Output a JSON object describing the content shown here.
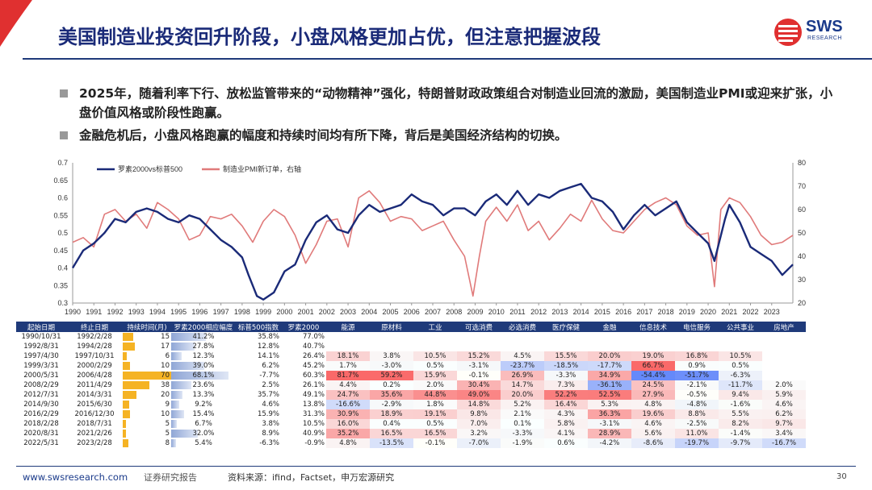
{
  "header": {
    "title": "美国制造业投资回升阶段，小盘风格更加占优，但注意把握波段",
    "logo_text": "SWS",
    "logo_sub": "RESEARCH"
  },
  "bullets": [
    "2025年，随着利率下行、放松监管带来的“动物精神”强化，特朗普财政政策组合对制造业回流的激励，美国制造业PMI或迎来扩张，小盘价值风格或阶段性跑赢。",
    "金融危机后，小盘风格跑赢的幅度和持续时间均有所下降，背后是美国经济结构的切换。"
  ],
  "colors": {
    "navy": "#1a2a78",
    "red": "#e07a7a",
    "bar_blue": "#8fa6d6",
    "bar_orange": "#f5b324",
    "header_bg": "#1f3a7a"
  },
  "chart_data": {
    "type": "line",
    "x_ticks": [
      "1990",
      "1991",
      "1992",
      "1993",
      "1994",
      "1995",
      "1996",
      "1997",
      "1998",
      "1999",
      "2000",
      "2001",
      "2002",
      "2003",
      "2004",
      "2005",
      "2006",
      "2007",
      "2008",
      "2009",
      "2010",
      "2011",
      "2012",
      "2013",
      "2014",
      "2015",
      "2016",
      "2017",
      "2018",
      "2019",
      "2020",
      "2021",
      "2022",
      "2023"
    ],
    "x_range": [
      1990,
      2024
    ],
    "y_left": {
      "range": [
        0.3,
        0.7
      ],
      "ticks": [
        "0.3",
        "0.35",
        "0.4",
        "0.45",
        "0.5",
        "0.55",
        "0.6",
        "0.65",
        "0.7"
      ]
    },
    "y_right": {
      "range": [
        20,
        80
      ],
      "ticks": [
        "20",
        "30",
        "40",
        "50",
        "60",
        "70",
        "80"
      ]
    },
    "series": [
      {
        "name": "罗素2000vs标普500",
        "axis": "left",
        "color": "#1a2a78",
        "points": [
          [
            1990.0,
            0.4
          ],
          [
            1990.5,
            0.45
          ],
          [
            1991.0,
            0.47
          ],
          [
            1991.5,
            0.5
          ],
          [
            1992.0,
            0.54
          ],
          [
            1992.5,
            0.53
          ],
          [
            1993.0,
            0.56
          ],
          [
            1993.5,
            0.57
          ],
          [
            1994.0,
            0.56
          ],
          [
            1994.5,
            0.54
          ],
          [
            1995.0,
            0.53
          ],
          [
            1995.5,
            0.55
          ],
          [
            1996.0,
            0.54
          ],
          [
            1996.5,
            0.51
          ],
          [
            1997.0,
            0.48
          ],
          [
            1997.5,
            0.46
          ],
          [
            1998.0,
            0.43
          ],
          [
            1998.3,
            0.38
          ],
          [
            1998.7,
            0.32
          ],
          [
            1999.0,
            0.31
          ],
          [
            1999.5,
            0.33
          ],
          [
            2000.0,
            0.39
          ],
          [
            2000.5,
            0.41
          ],
          [
            2001.0,
            0.48
          ],
          [
            2001.5,
            0.53
          ],
          [
            2002.0,
            0.55
          ],
          [
            2002.5,
            0.51
          ],
          [
            2003.0,
            0.5
          ],
          [
            2003.5,
            0.55
          ],
          [
            2004.0,
            0.58
          ],
          [
            2004.5,
            0.56
          ],
          [
            2005.0,
            0.57
          ],
          [
            2005.5,
            0.58
          ],
          [
            2006.0,
            0.61
          ],
          [
            2006.5,
            0.59
          ],
          [
            2007.0,
            0.58
          ],
          [
            2007.5,
            0.55
          ],
          [
            2008.0,
            0.57
          ],
          [
            2008.5,
            0.57
          ],
          [
            2009.0,
            0.55
          ],
          [
            2009.5,
            0.59
          ],
          [
            2010.0,
            0.61
          ],
          [
            2010.5,
            0.58
          ],
          [
            2011.0,
            0.62
          ],
          [
            2011.5,
            0.58
          ],
          [
            2012.0,
            0.61
          ],
          [
            2012.5,
            0.6
          ],
          [
            2013.0,
            0.62
          ],
          [
            2013.5,
            0.63
          ],
          [
            2014.0,
            0.64
          ],
          [
            2014.5,
            0.6
          ],
          [
            2015.0,
            0.59
          ],
          [
            2015.5,
            0.56
          ],
          [
            2016.0,
            0.51
          ],
          [
            2016.5,
            0.55
          ],
          [
            2017.0,
            0.58
          ],
          [
            2017.5,
            0.55
          ],
          [
            2018.0,
            0.57
          ],
          [
            2018.5,
            0.59
          ],
          [
            2019.0,
            0.53
          ],
          [
            2019.5,
            0.5
          ],
          [
            2020.0,
            0.47
          ],
          [
            2020.3,
            0.42
          ],
          [
            2020.8,
            0.54
          ],
          [
            2021.0,
            0.58
          ],
          [
            2021.5,
            0.53
          ],
          [
            2022.0,
            0.46
          ],
          [
            2022.5,
            0.44
          ],
          [
            2023.0,
            0.42
          ],
          [
            2023.5,
            0.38
          ],
          [
            2024.0,
            0.41
          ]
        ]
      },
      {
        "name": "制造业PMI新订单，右轴",
        "axis": "right",
        "color": "#e07a7a",
        "points": [
          [
            1990.0,
            46
          ],
          [
            1990.5,
            48
          ],
          [
            1991.0,
            44
          ],
          [
            1991.5,
            58
          ],
          [
            1992.0,
            60
          ],
          [
            1992.5,
            55
          ],
          [
            1993.0,
            58
          ],
          [
            1993.5,
            52
          ],
          [
            1994.0,
            63
          ],
          [
            1994.5,
            60
          ],
          [
            1995.0,
            56
          ],
          [
            1995.5,
            47
          ],
          [
            1996.0,
            49
          ],
          [
            1996.5,
            57
          ],
          [
            1997.0,
            56
          ],
          [
            1997.5,
            58
          ],
          [
            1998.0,
            53
          ],
          [
            1998.5,
            46
          ],
          [
            1999.0,
            55
          ],
          [
            1999.5,
            60
          ],
          [
            2000.0,
            57
          ],
          [
            2000.5,
            49
          ],
          [
            2001.0,
            37
          ],
          [
            2001.5,
            45
          ],
          [
            2002.0,
            55
          ],
          [
            2002.5,
            56
          ],
          [
            2003.0,
            44
          ],
          [
            2003.5,
            65
          ],
          [
            2004.0,
            68
          ],
          [
            2004.5,
            63
          ],
          [
            2005.0,
            55
          ],
          [
            2005.5,
            57
          ],
          [
            2006.0,
            56
          ],
          [
            2006.5,
            51
          ],
          [
            2007.0,
            53
          ],
          [
            2007.5,
            55
          ],
          [
            2008.0,
            47
          ],
          [
            2008.5,
            40
          ],
          [
            2008.9,
            23
          ],
          [
            2009.2,
            40
          ],
          [
            2009.5,
            55
          ],
          [
            2010.0,
            61
          ],
          [
            2010.5,
            55
          ],
          [
            2011.0,
            62
          ],
          [
            2011.5,
            51
          ],
          [
            2012.0,
            55
          ],
          [
            2012.5,
            47
          ],
          [
            2013.0,
            52
          ],
          [
            2013.5,
            58
          ],
          [
            2014.0,
            55
          ],
          [
            2014.5,
            64
          ],
          [
            2015.0,
            56
          ],
          [
            2015.5,
            51
          ],
          [
            2016.0,
            50
          ],
          [
            2016.5,
            55
          ],
          [
            2017.0,
            60
          ],
          [
            2017.5,
            63
          ],
          [
            2018.0,
            65
          ],
          [
            2018.5,
            62
          ],
          [
            2019.0,
            53
          ],
          [
            2019.5,
            49
          ],
          [
            2020.0,
            50
          ],
          [
            2020.3,
            27
          ],
          [
            2020.6,
            60
          ],
          [
            2021.0,
            65
          ],
          [
            2021.5,
            63
          ],
          [
            2022.0,
            57
          ],
          [
            2022.5,
            49
          ],
          [
            2023.0,
            45
          ],
          [
            2023.5,
            46
          ],
          [
            2024.0,
            49
          ]
        ]
      }
    ]
  },
  "table": {
    "headers": [
      "起始日期",
      "终止日期",
      "持续时间(月)",
      "罗素2000相应幅度",
      "标普500指数",
      "罗素2000",
      "能源",
      "原材料",
      "工业",
      "可选消费",
      "必选消费",
      "医疗保健",
      "金融",
      "信息技术",
      "电信服务",
      "公共事业",
      "房地产"
    ],
    "dur_max": 70,
    "ret_max": 77.0,
    "rows": [
      {
        "start": "1990/10/31",
        "end": "1992/2/28",
        "dur": 15,
        "rel": "41.2%",
        "rel_v": 41.2,
        "sp": "35.8%",
        "r2k": "77.0%",
        "sec": [
          "",
          "",
          "",
          "",
          "",
          "",
          "",
          "",
          "",
          "",
          ""
        ],
        "sec_v": [
          null,
          null,
          null,
          null,
          null,
          null,
          null,
          null,
          null,
          null,
          null
        ]
      },
      {
        "start": "1992/8/31",
        "end": "1994/2/28",
        "dur": 17,
        "rel": "27.8%",
        "rel_v": 27.8,
        "sp": "12.8%",
        "r2k": "40.7%",
        "sec": [
          "",
          "",
          "",
          "",
          "",
          "",
          "",
          "",
          "",
          "",
          ""
        ],
        "sec_v": [
          null,
          null,
          null,
          null,
          null,
          null,
          null,
          null,
          null,
          null,
          null
        ]
      },
      {
        "start": "1997/4/30",
        "end": "1997/10/31",
        "dur": 6,
        "rel": "12.3%",
        "rel_v": 12.3,
        "sp": "14.1%",
        "r2k": "26.4%",
        "sec": [
          "18.1%",
          "3.8%",
          "10.5%",
          "15.2%",
          "4.5%",
          "15.5%",
          "20.0%",
          "19.0%",
          "16.8%",
          "10.5%",
          ""
        ],
        "sec_v": [
          18.1,
          3.8,
          10.5,
          15.2,
          4.5,
          15.5,
          20.0,
          19.0,
          16.8,
          10.5,
          null
        ]
      },
      {
        "start": "1999/3/31",
        "end": "2000/2/29",
        "dur": 10,
        "rel": "39.0%",
        "rel_v": 39.0,
        "sp": "6.2%",
        "r2k": "45.2%",
        "sec": [
          "1.7%",
          "-3.0%",
          "0.5%",
          "-3.1%",
          "-23.7%",
          "-18.5%",
          "-17.7%",
          "66.7%",
          "0.9%",
          "0.5%",
          ""
        ],
        "sec_v": [
          1.7,
          -3.0,
          0.5,
          -3.1,
          -23.7,
          -18.5,
          -17.7,
          66.7,
          0.9,
          0.5,
          null
        ]
      },
      {
        "start": "2000/5/31",
        "end": "2006/4/28",
        "dur": 70,
        "rel": "68.1%",
        "rel_v": 68.1,
        "sp": "-7.7%",
        "r2k": "60.3%",
        "sec": [
          "81.7%",
          "59.2%",
          "15.9%",
          "-0.1%",
          "26.9%",
          "-3.3%",
          "34.9%",
          "-54.4%",
          "-51.7%",
          "-6.3%",
          ""
        ],
        "sec_v": [
          81.7,
          59.2,
          15.9,
          -0.1,
          26.9,
          -3.3,
          34.9,
          -54.4,
          -51.7,
          -6.3,
          null
        ]
      },
      {
        "start": "2008/2/29",
        "end": "2011/4/29",
        "dur": 38,
        "rel": "23.6%",
        "rel_v": 23.6,
        "sp": "2.5%",
        "r2k": "26.1%",
        "sec": [
          "4.4%",
          "0.2%",
          "2.0%",
          "30.4%",
          "14.7%",
          "7.3%",
          "-36.1%",
          "24.5%",
          "-2.1%",
          "-11.7%",
          "2.0%"
        ],
        "sec_v": [
          4.4,
          0.2,
          2.0,
          30.4,
          14.7,
          7.3,
          -36.1,
          24.5,
          -2.1,
          -11.7,
          2.0
        ]
      },
      {
        "start": "2012/7/31",
        "end": "2014/3/31",
        "dur": 20,
        "rel": "13.3%",
        "rel_v": 13.3,
        "sp": "35.7%",
        "r2k": "49.1%",
        "sec": [
          "24.7%",
          "35.6%",
          "44.8%",
          "49.0%",
          "20.0%",
          "52.2%",
          "52.5%",
          "27.9%",
          "-0.5%",
          "9.4%",
          "5.9%"
        ],
        "sec_v": [
          24.7,
          35.6,
          44.8,
          49.0,
          20.0,
          52.2,
          52.5,
          27.9,
          -0.5,
          9.4,
          5.9
        ]
      },
      {
        "start": "2014/9/30",
        "end": "2015/6/30",
        "dur": 9,
        "rel": "9.2%",
        "rel_v": 9.2,
        "sp": "4.6%",
        "r2k": "13.8%",
        "sec": [
          "-16.6%",
          "-2.9%",
          "1.8%",
          "14.8%",
          "5.2%",
          "16.4%",
          "5.3%",
          "4.8%",
          "-4.8%",
          "-1.6%",
          "4.6%"
        ],
        "sec_v": [
          -16.6,
          -2.9,
          1.8,
          14.8,
          5.2,
          16.4,
          5.3,
          4.8,
          -4.8,
          -1.6,
          4.6
        ]
      },
      {
        "start": "2016/2/29",
        "end": "2016/12/30",
        "dur": 10,
        "rel": "15.4%",
        "rel_v": 15.4,
        "sp": "15.9%",
        "r2k": "31.3%",
        "sec": [
          "30.9%",
          "18.9%",
          "19.1%",
          "9.8%",
          "2.1%",
          "4.3%",
          "36.3%",
          "19.6%",
          "8.8%",
          "5.5%",
          "6.2%"
        ],
        "sec_v": [
          30.9,
          18.9,
          19.1,
          9.8,
          2.1,
          4.3,
          36.3,
          19.6,
          8.8,
          5.5,
          6.2
        ]
      },
      {
        "start": "2018/2/28",
        "end": "2018/7/31",
        "dur": 5,
        "rel": "6.7%",
        "rel_v": 6.7,
        "sp": "3.8%",
        "r2k": "10.5%",
        "sec": [
          "16.0%",
          "0.4%",
          "0.5%",
          "7.0%",
          "0.1%",
          "5.8%",
          "-3.1%",
          "4.6%",
          "-2.5%",
          "8.2%",
          "9.7%"
        ],
        "sec_v": [
          16.0,
          0.4,
          0.5,
          7.0,
          0.1,
          5.8,
          -3.1,
          4.6,
          -2.5,
          8.2,
          9.7
        ]
      },
      {
        "start": "2020/8/31",
        "end": "2021/2/26",
        "dur": 5,
        "rel": "32.0%",
        "rel_v": 32.0,
        "sp": "8.9%",
        "r2k": "40.9%",
        "sec": [
          "35.2%",
          "16.5%",
          "16.5%",
          "3.2%",
          "-3.3%",
          "4.1%",
          "28.9%",
          "5.6%",
          "11.0%",
          "-1.4%",
          "3.4%"
        ],
        "sec_v": [
          35.2,
          16.5,
          16.5,
          3.2,
          -3.3,
          4.1,
          28.9,
          5.6,
          11.0,
          -1.4,
          3.4
        ]
      },
      {
        "start": "2022/5/31",
        "end": "2023/2/28",
        "dur": 8,
        "rel": "5.4%",
        "rel_v": 5.4,
        "sp": "-6.3%",
        "r2k": "-0.9%",
        "sec": [
          "4.8%",
          "-13.5%",
          "-0.1%",
          "-7.0%",
          "-1.9%",
          "0.6%",
          "-4.2%",
          "-8.6%",
          "-19.7%",
          "-9.7%",
          "-16.7%"
        ],
        "sec_v": [
          4.8,
          -13.5,
          -0.1,
          -7.0,
          -1.9,
          0.6,
          -4.2,
          -8.6,
          -19.7,
          -9.7,
          -16.7
        ]
      }
    ]
  },
  "footer": {
    "site": "www.swsresearch.com",
    "report": "证券研究报告",
    "source": "资料来源：ifind，Factset，申万宏源研究",
    "page": "30"
  }
}
